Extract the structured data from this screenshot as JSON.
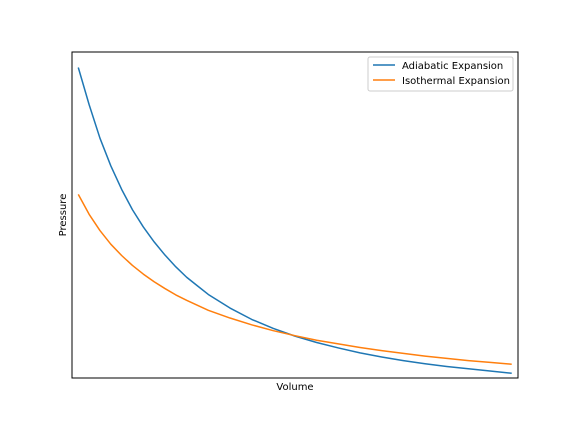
{
  "chart_data": {
    "type": "line",
    "xlabel": "Volume",
    "ylabel": "Pressure",
    "xticks": [],
    "yticks": [],
    "xlim": [
      0.855,
      11.145
    ],
    "ylim": [
      0.1146,
      0.8342
    ],
    "grid": false,
    "legend_position": "upper right",
    "series": [
      {
        "name": "Adiabatic Expansion",
        "color": "#1f77b4",
        "x": [
          1.0,
          1.25,
          1.5,
          1.75,
          2.0,
          2.25,
          2.5,
          2.75,
          3.0,
          3.25,
          3.5,
          3.75,
          4.0,
          4.5,
          5.0,
          5.5,
          6.0,
          6.5,
          7.0,
          7.5,
          8.0,
          8.5,
          9.0,
          9.5,
          10.0,
          10.5,
          11.0
        ],
        "y": [
          0.8,
          0.718,
          0.644,
          0.583,
          0.531,
          0.486,
          0.448,
          0.415,
          0.386,
          0.36,
          0.337,
          0.318,
          0.299,
          0.269,
          0.244,
          0.224,
          0.207,
          0.193,
          0.181,
          0.17,
          0.161,
          0.153,
          0.146,
          0.14,
          0.135,
          0.13,
          0.125
        ]
      },
      {
        "name": "Isothermal Expansion",
        "color": "#ff7f0e",
        "x": [
          1.0,
          1.25,
          1.5,
          1.75,
          2.0,
          2.25,
          2.5,
          2.75,
          3.0,
          3.25,
          3.5,
          3.75,
          4.0,
          4.5,
          5.0,
          5.5,
          6.0,
          6.5,
          7.0,
          7.5,
          8.0,
          8.5,
          9.0,
          9.5,
          10.0,
          10.5,
          11.0
        ],
        "y": [
          0.52,
          0.476,
          0.44,
          0.41,
          0.385,
          0.363,
          0.344,
          0.327,
          0.312,
          0.298,
          0.286,
          0.275,
          0.264,
          0.247,
          0.232,
          0.219,
          0.208,
          0.198,
          0.19,
          0.182,
          0.175,
          0.169,
          0.163,
          0.158,
          0.153,
          0.149,
          0.145
        ]
      }
    ]
  }
}
